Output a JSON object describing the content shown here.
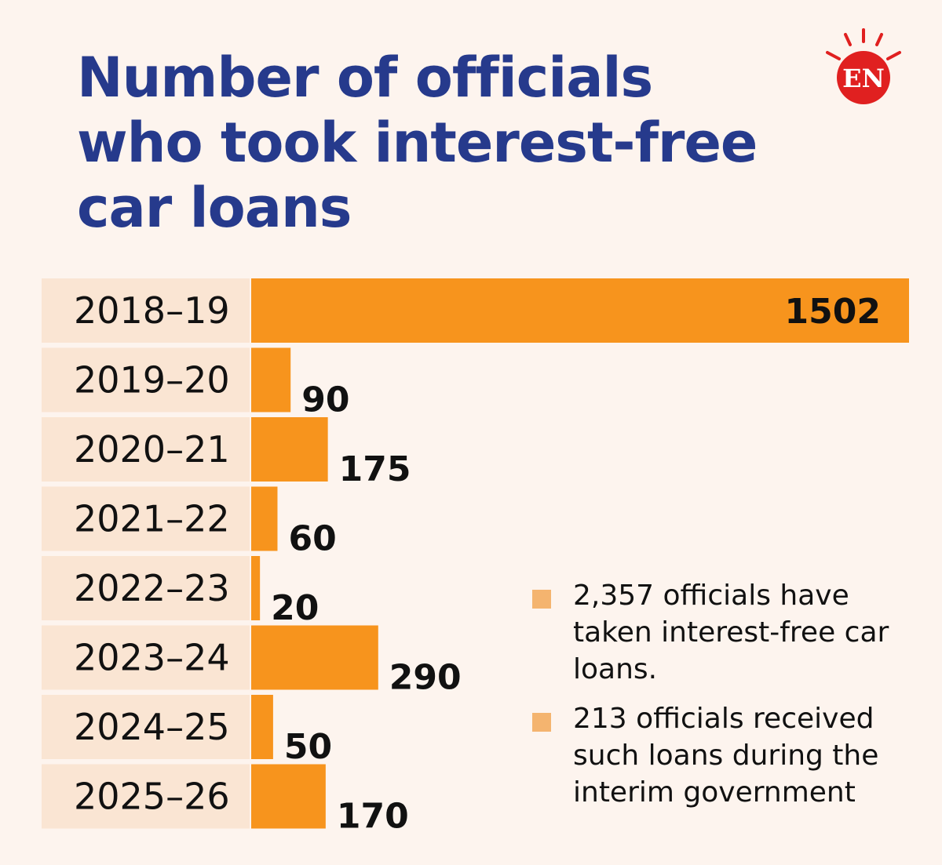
{
  "header": {
    "title_lines": [
      "Number of officials",
      "who took interest-free",
      "car loans"
    ],
    "logo_text": "EN"
  },
  "chart_data": {
    "type": "bar",
    "orientation": "horizontal",
    "title": "Number of officials who took interest-free car loans",
    "categories": [
      "2018–19",
      "2019–20",
      "2020–21",
      "2021–22",
      "2022–23",
      "2023–24",
      "2024–25",
      "2025–26"
    ],
    "values": [
      1502,
      90,
      175,
      60,
      20,
      290,
      50,
      170
    ],
    "data_labels": [
      "1502",
      "90",
      "175",
      "60",
      "20",
      "290",
      "50",
      "170"
    ],
    "xlim": [
      0,
      1502
    ],
    "grid": false,
    "bar_color": "#f7941d",
    "row_background": "#fae5d3"
  },
  "notes": [
    "2,357 officials have taken interest-free car loans.",
    "213 officials received such loans during the interim government"
  ],
  "colors": {
    "background": "#fdf4ee",
    "title": "#263a8c",
    "bar": "#f7941d",
    "note_marker": "#f4b46f",
    "logo": "#e02020"
  }
}
